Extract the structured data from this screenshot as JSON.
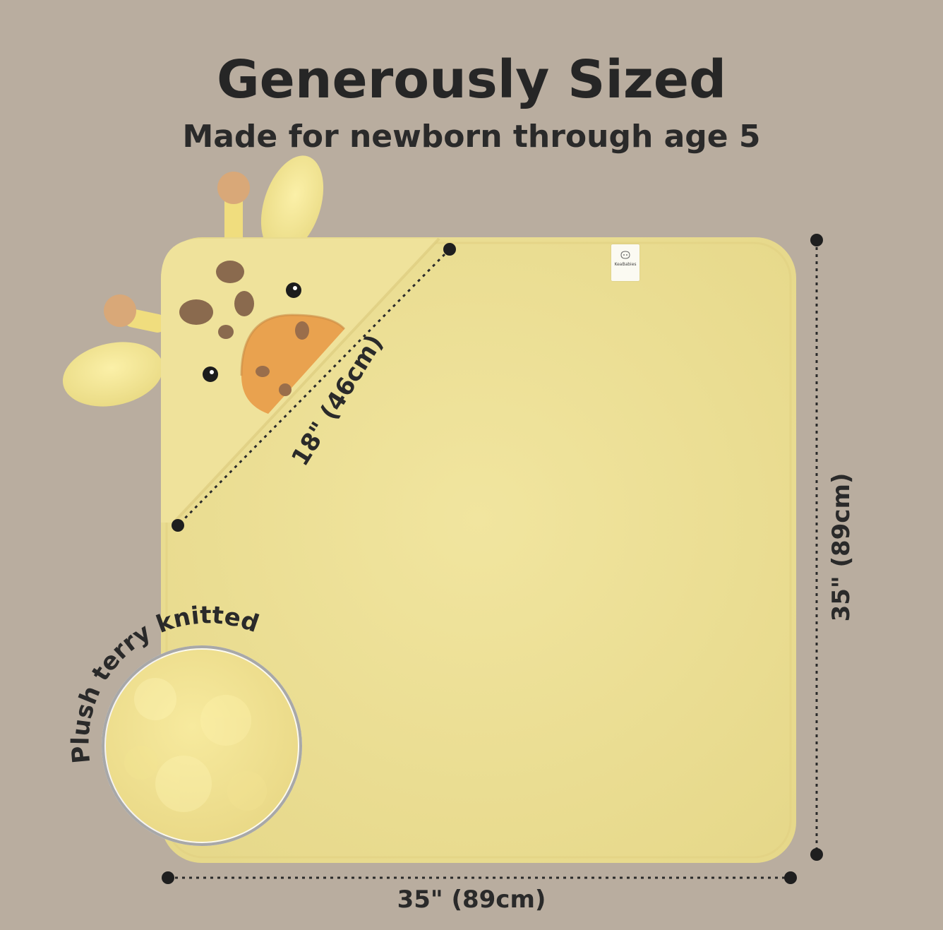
{
  "headline": "Generously Sized",
  "subheadline": "Made for newborn through age 5",
  "dimensions": {
    "width": "35\" (89cm)",
    "height": "35\" (89cm)",
    "hood": "18\" (46cm)"
  },
  "texture_callout": "Plush terry knitted",
  "brand_tag": "KeaBabies",
  "colors": {
    "background": "#b9ad9f",
    "towel": "#efe29a",
    "text": "#262626",
    "giraffe_snout": "#e9a24f",
    "giraffe_spots": "#8a6a4e"
  }
}
